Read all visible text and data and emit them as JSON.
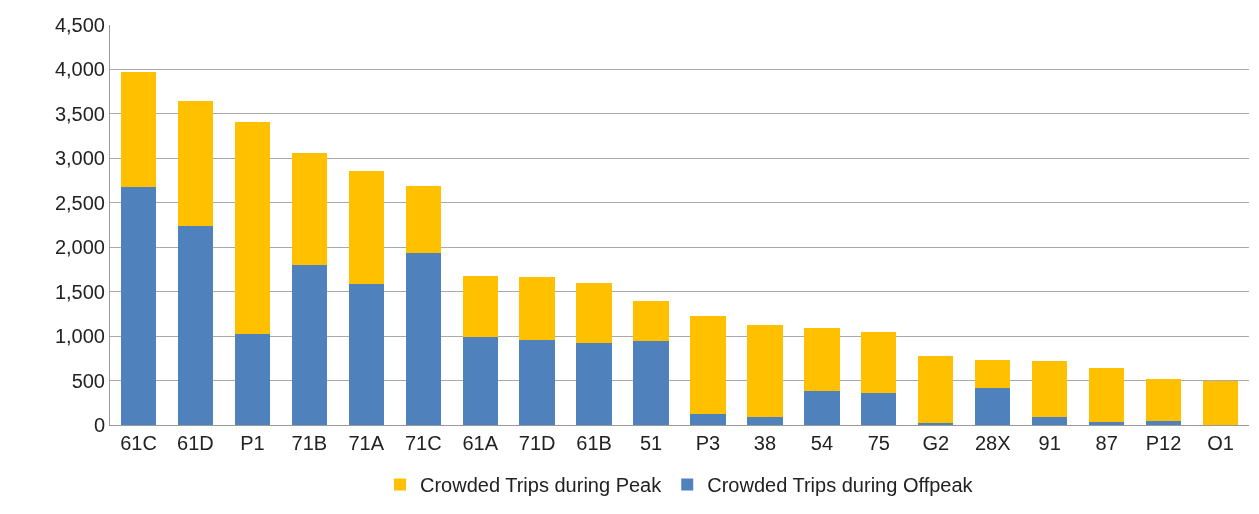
{
  "chart_data": {
    "type": "bar",
    "stacked": true,
    "categories": [
      "61C",
      "61D",
      "P1",
      "71B",
      "71A",
      "71C",
      "61A",
      "71D",
      "61B",
      "51",
      "P3",
      "38",
      "54",
      "75",
      "G2",
      "28X",
      "91",
      "87",
      "P12",
      "O1"
    ],
    "series": [
      {
        "name": "Crowded Trips during Offpeak",
        "color": "#4f81bd",
        "values": [
          2680,
          2240,
          1020,
          1800,
          1590,
          1930,
          990,
          960,
          920,
          950,
          120,
          90,
          380,
          360,
          20,
          420,
          90,
          30,
          50,
          0
        ]
      },
      {
        "name": "Crowded Trips during Peak",
        "color": "#ffc000",
        "values": [
          1290,
          1410,
          2390,
          1260,
          1270,
          760,
          690,
          710,
          680,
          450,
          1110,
          1040,
          710,
          690,
          760,
          310,
          630,
          610,
          470,
          500
        ]
      }
    ],
    "ylim": [
      0,
      4500
    ],
    "yticks": [
      {
        "value": 0,
        "label": "0"
      },
      {
        "value": 500,
        "label": "500"
      },
      {
        "value": 1000,
        "label": "1,000"
      },
      {
        "value": 1500,
        "label": "1,500"
      },
      {
        "value": 2000,
        "label": "2,000"
      },
      {
        "value": 2500,
        "label": "2,500"
      },
      {
        "value": 3000,
        "label": "3,000"
      },
      {
        "value": 3500,
        "label": "3,500"
      },
      {
        "value": 4000,
        "label": "4,000"
      },
      {
        "value": 4500,
        "label": "4,500"
      }
    ],
    "grid": "y",
    "legend": "bottom"
  }
}
